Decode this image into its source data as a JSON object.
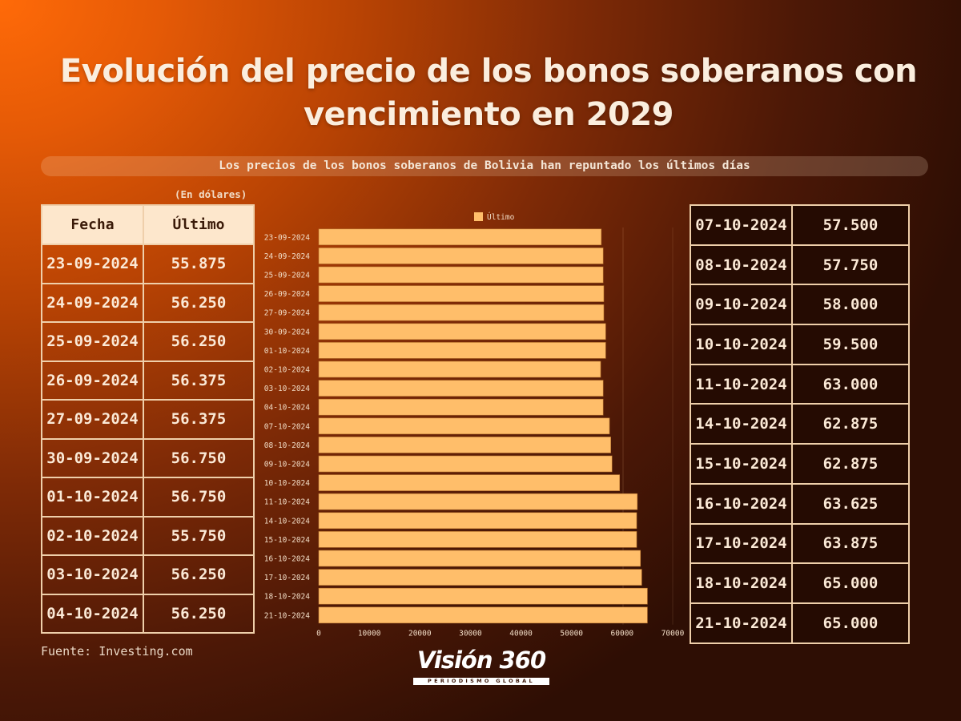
{
  "title_line1": "Evolución del precio de los bonos soberanos con",
  "title_line2": "vencimiento en 2029",
  "subtitle": "Los precios de los bonos soberanos de Bolivia han repuntado los últimos días",
  "units": "(En dólares)",
  "table": {
    "header_date": "Fecha",
    "header_value": "Último",
    "left_rows": [
      {
        "date": "23-09-2024",
        "value": "55.875"
      },
      {
        "date": "24-09-2024",
        "value": "56.250"
      },
      {
        "date": "25-09-2024",
        "value": "56.250"
      },
      {
        "date": "26-09-2024",
        "value": "56.375"
      },
      {
        "date": "27-09-2024",
        "value": "56.375"
      },
      {
        "date": "30-09-2024",
        "value": "56.750"
      },
      {
        "date": "01-10-2024",
        "value": "56.750"
      },
      {
        "date": "02-10-2024",
        "value": "55.750"
      },
      {
        "date": "03-10-2024",
        "value": "56.250"
      },
      {
        "date": "04-10-2024",
        "value": "56.250"
      }
    ],
    "right_rows": [
      {
        "date": "07-10-2024",
        "value": "57.500"
      },
      {
        "date": "08-10-2024",
        "value": "57.750"
      },
      {
        "date": "09-10-2024",
        "value": "58.000"
      },
      {
        "date": "10-10-2024",
        "value": "59.500"
      },
      {
        "date": "11-10-2024",
        "value": "63.000"
      },
      {
        "date": "14-10-2024",
        "value": "62.875"
      },
      {
        "date": "15-10-2024",
        "value": "62.875"
      },
      {
        "date": "16-10-2024",
        "value": "63.625"
      },
      {
        "date": "17-10-2024",
        "value": "63.875"
      },
      {
        "date": "18-10-2024",
        "value": "65.000"
      },
      {
        "date": "21-10-2024",
        "value": "65.000"
      }
    ]
  },
  "source": "Fuente: Investing.com",
  "logo": {
    "main": "Visión 360",
    "tagline": "PERIODISMO GLOBAL"
  },
  "colors": {
    "bar": "#ffbe6a",
    "header_bg": "#fde7cc",
    "border": "#efcfaa"
  },
  "chart_data": {
    "type": "bar",
    "orientation": "horizontal",
    "categories": [
      "23-09-2024",
      "24-09-2024",
      "25-09-2024",
      "26-09-2024",
      "27-09-2024",
      "30-09-2024",
      "01-10-2024",
      "02-10-2024",
      "03-10-2024",
      "04-10-2024",
      "07-10-2024",
      "08-10-2024",
      "09-10-2024",
      "10-10-2024",
      "11-10-2024",
      "14-10-2024",
      "15-10-2024",
      "16-10-2024",
      "17-10-2024",
      "18-10-2024",
      "21-10-2024"
    ],
    "series": [
      {
        "name": "Último",
        "values": [
          55875,
          56250,
          56250,
          56375,
          56375,
          56750,
          56750,
          55750,
          56250,
          56250,
          57500,
          57750,
          58000,
          59500,
          63000,
          62875,
          62875,
          63625,
          63875,
          65000,
          65000
        ]
      }
    ],
    "xlim": [
      0,
      70000
    ],
    "xticks": [
      0,
      10000,
      20000,
      30000,
      40000,
      50000,
      60000,
      70000
    ],
    "legend": "top",
    "grid": false
  }
}
